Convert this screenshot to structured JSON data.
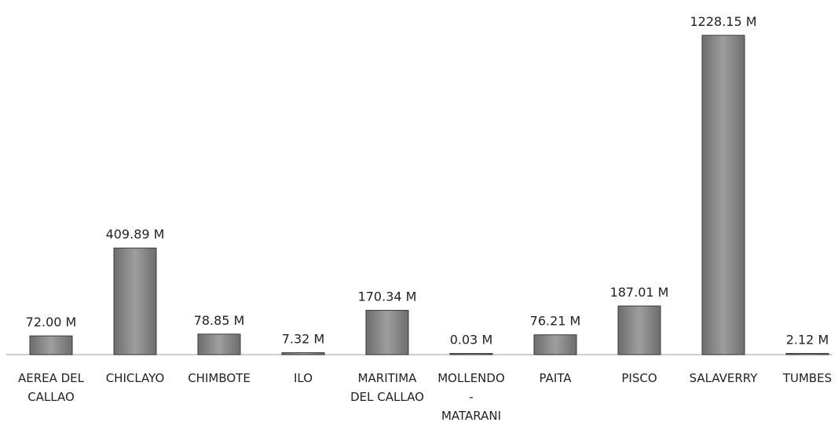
{
  "chart_data": {
    "type": "bar",
    "categories": [
      [
        "AEREA DEL",
        "CALLAO"
      ],
      [
        "CHICLAYO"
      ],
      [
        "CHIMBOTE"
      ],
      [
        "ILO"
      ],
      [
        "MARITIMA",
        "DEL CALLAO"
      ],
      [
        "MOLLENDO",
        "-",
        "MATARANI"
      ],
      [
        "PAITA"
      ],
      [
        "PISCO"
      ],
      [
        "SALAVERRY"
      ],
      [
        "TUMBES"
      ]
    ],
    "values": [
      72.0,
      409.89,
      78.85,
      7.32,
      170.34,
      0.03,
      76.21,
      187.01,
      1228.15,
      2.12
    ],
    "data_labels": [
      "72.00 M",
      "409.89 M",
      "78.85 M",
      "7.32 M",
      "170.34 M",
      "0.03 M",
      "76.21 M",
      "187.01 M",
      "1228.15 M",
      "2.12 M"
    ],
    "title": "",
    "xlabel": "",
    "ylabel": "",
    "ylim": [
      0,
      1228.15
    ],
    "grid": false,
    "legend": "none",
    "bar_color": "#8a8a8a",
    "bar_edge_color": "#3a3a3a",
    "baseline_color": "#bdbdbd"
  }
}
